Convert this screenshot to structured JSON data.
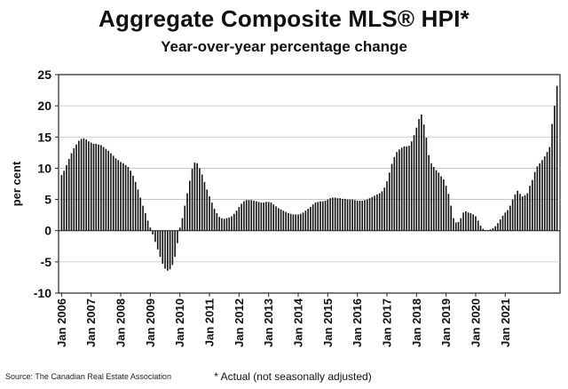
{
  "chart_data": {
    "type": "bar",
    "title": "Aggregate Composite MLS® HPI*",
    "subtitle": "Year-over-year percentage change",
    "ylabel": "per cent",
    "xlabel": "",
    "ylim": [
      -10,
      25
    ],
    "yticks": [
      -10,
      -5,
      0,
      5,
      10,
      15,
      20,
      25
    ],
    "xtick_labels": [
      "Jan 2006",
      "Jan 2007",
      "Jan 2008",
      "Jan 2009",
      "Jan 2010",
      "Jan 2011",
      "Jan 2012",
      "Jan 2013",
      "Jan 2014",
      "Jan 2015",
      "Jan 2016",
      "Jan 2017",
      "Jan 2018",
      "Jan 2019",
      "Jan 2020",
      "Jan 2021"
    ],
    "grid": true,
    "start": "Jan 2006",
    "frequency": "monthly",
    "values": [
      8.9,
      9.6,
      10.5,
      11.5,
      12.4,
      13.2,
      13.8,
      14.4,
      14.7,
      14.8,
      14.6,
      14.3,
      14.1,
      13.9,
      13.9,
      13.8,
      13.7,
      13.4,
      13.1,
      12.8,
      12.4,
      12.0,
      11.6,
      11.3,
      11.0,
      10.8,
      10.5,
      10.2,
      9.6,
      8.8,
      7.8,
      6.6,
      5.3,
      4.0,
      2.8,
      1.6,
      0.5,
      -0.6,
      -1.8,
      -3.0,
      -4.2,
      -5.3,
      -6.1,
      -6.4,
      -6.2,
      -5.5,
      -4.2,
      -2.0,
      0.5,
      2.0,
      4.0,
      6.0,
      8.0,
      9.9,
      10.9,
      10.8,
      10.0,
      9.0,
      7.8,
      6.6,
      5.5,
      4.5,
      3.5,
      2.8,
      2.2,
      2.0,
      1.9,
      2.0,
      2.1,
      2.3,
      2.7,
      3.2,
      3.8,
      4.3,
      4.7,
      4.9,
      4.9,
      4.9,
      4.8,
      4.7,
      4.6,
      4.5,
      4.5,
      4.6,
      4.6,
      4.5,
      4.2,
      3.9,
      3.6,
      3.4,
      3.2,
      3.0,
      2.8,
      2.7,
      2.6,
      2.6,
      2.6,
      2.7,
      2.9,
      3.2,
      3.5,
      3.8,
      4.2,
      4.5,
      4.6,
      4.7,
      4.7,
      4.8,
      5.0,
      5.2,
      5.3,
      5.3,
      5.2,
      5.2,
      5.1,
      5.1,
      5.0,
      5.0,
      5.0,
      4.9,
      4.8,
      4.8,
      4.8,
      4.9,
      5.0,
      5.2,
      5.4,
      5.6,
      5.8,
      6.0,
      6.3,
      6.9,
      7.9,
      9.3,
      10.7,
      11.8,
      12.6,
      13.0,
      13.3,
      13.5,
      13.5,
      13.6,
      14.3,
      15.3,
      16.5,
      17.9,
      18.6,
      17.0,
      14.9,
      12.1,
      10.8,
      10.2,
      9.7,
      9.3,
      8.7,
      8.2,
      7.2,
      5.9,
      4.0,
      2.0,
      1.3,
      1.4,
      2.0,
      2.9,
      3.1,
      2.9,
      2.8,
      2.6,
      2.3,
      1.6,
      0.8,
      0.3,
      0.1,
      0.1,
      0.2,
      0.4,
      0.7,
      1.2,
      1.8,
      2.4,
      2.9,
      3.3,
      4.0,
      5.0,
      5.8,
      6.4,
      5.9,
      5.5,
      5.7,
      6.0,
      7.2,
      8.1,
      9.4,
      10.3,
      10.8,
      11.3,
      11.9,
      12.6,
      13.4,
      17.1,
      20.0,
      23.2
    ]
  },
  "footer": {
    "source": "Source: The Canadian Real Estate Association",
    "note": "* Actual (not seasonally adjusted)"
  },
  "colors": {
    "bar": "#141414",
    "grid": "#bdbdbd",
    "axis": "#222222"
  }
}
